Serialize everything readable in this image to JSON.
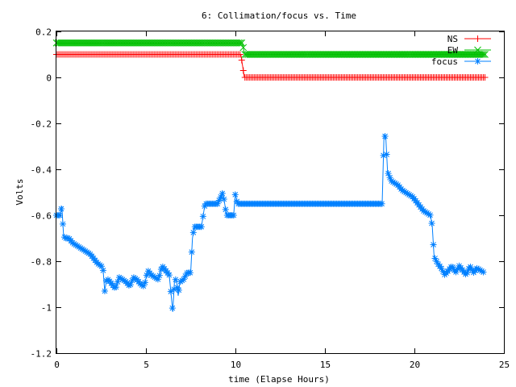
{
  "chart_data": {
    "type": "line",
    "title": "6: Collimation/focus vs. Time",
    "xlabel": "time (Elapse Hours)",
    "ylabel": "Volts",
    "xlim": [
      0,
      25
    ],
    "ylim": [
      -1.2,
      0.2
    ],
    "xticks": [
      0,
      5,
      10,
      15,
      20,
      25
    ],
    "yticks": [
      0.2,
      0,
      -0.2,
      -0.4,
      -0.6,
      -0.8,
      -1,
      -1.2
    ],
    "xtick_labels": [
      "0",
      "5",
      "10",
      "15",
      "20",
      "25"
    ],
    "ytick_labels": [
      "0.2",
      "0",
      "-0.2",
      "-0.4",
      "-0.6",
      "-0.8",
      "-1",
      "-1.2"
    ],
    "grid": false,
    "legend_position": "top-right",
    "series": [
      {
        "name": "NS",
        "color": "#ff0000",
        "marker": "plus",
        "x": [
          0,
          10.3,
          10.4,
          10.5,
          24
        ],
        "y": [
          0.1,
          0.1,
          0.05,
          0.0,
          0.0
        ]
      },
      {
        "name": "EW",
        "color": "#00c000",
        "marker": "x",
        "x": [
          0,
          10.4,
          10.5,
          24
        ],
        "y": [
          0.15,
          0.15,
          0.1,
          0.1
        ]
      },
      {
        "name": "focus",
        "color": "#0080ff",
        "marker": "star",
        "x": [
          0,
          0.1,
          0.2,
          0.3,
          0.4,
          0.5,
          0.7,
          0.9,
          1.1,
          1.3,
          1.5,
          1.7,
          1.9,
          2.1,
          2.3,
          2.5,
          2.6,
          2.7,
          2.8,
          2.9,
          3.1,
          3.3,
          3.5,
          3.7,
          3.9,
          4.1,
          4.3,
          4.5,
          4.7,
          4.9,
          5.1,
          5.3,
          5.5,
          5.7,
          5.9,
          6.1,
          6.3,
          6.5,
          6.6,
          6.7,
          6.8,
          6.9,
          7.1,
          7.3,
          7.5,
          7.6,
          7.7,
          7.8,
          7.9,
          8.1,
          8.3,
          8.5,
          9.0,
          9.3,
          9.5,
          9.7,
          9.9,
          10.0,
          10.1,
          10.2,
          10.5,
          11,
          12,
          13,
          14,
          15,
          16,
          17,
          18,
          18.2,
          18.3,
          18.4,
          18.5,
          18.6,
          18.7,
          18.9,
          19.1,
          19.3,
          19.5,
          19.7,
          19.9,
          20.1,
          20.3,
          20.5,
          20.7,
          20.9,
          21.0,
          21.1,
          21.3,
          21.5,
          21.7,
          21.9,
          22.1,
          22.3,
          22.5,
          22.7,
          22.9,
          23.1,
          23.3,
          23.5,
          23.7,
          23.9
        ],
        "y": [
          -0.6,
          -0.6,
          -0.6,
          -0.56,
          -0.69,
          -0.7,
          -0.7,
          -0.72,
          -0.73,
          -0.74,
          -0.75,
          -0.76,
          -0.77,
          -0.79,
          -0.81,
          -0.82,
          -0.83,
          -0.93,
          -0.88,
          -0.88,
          -0.9,
          -0.92,
          -0.87,
          -0.88,
          -0.89,
          -0.91,
          -0.87,
          -0.88,
          -0.9,
          -0.91,
          -0.84,
          -0.86,
          -0.87,
          -0.88,
          -0.82,
          -0.84,
          -0.86,
          -1.02,
          -0.88,
          -0.88,
          -0.95,
          -0.89,
          -0.88,
          -0.85,
          -0.85,
          -0.7,
          -0.65,
          -0.65,
          -0.65,
          -0.65,
          -0.55,
          -0.55,
          -0.55,
          -0.5,
          -0.6,
          -0.6,
          -0.6,
          -0.5,
          -0.55,
          -0.55,
          -0.55,
          -0.55,
          -0.55,
          -0.55,
          -0.55,
          -0.55,
          -0.55,
          -0.55,
          -0.55,
          -0.55,
          -0.25,
          -0.26,
          -0.41,
          -0.43,
          -0.45,
          -0.46,
          -0.47,
          -0.49,
          -0.5,
          -0.51,
          -0.52,
          -0.54,
          -0.56,
          -0.58,
          -0.59,
          -0.6,
          -0.65,
          -0.78,
          -0.81,
          -0.83,
          -0.86,
          -0.84,
          -0.82,
          -0.85,
          -0.82,
          -0.84,
          -0.86,
          -0.82,
          -0.85,
          -0.83,
          -0.84,
          -0.85
        ]
      }
    ]
  }
}
